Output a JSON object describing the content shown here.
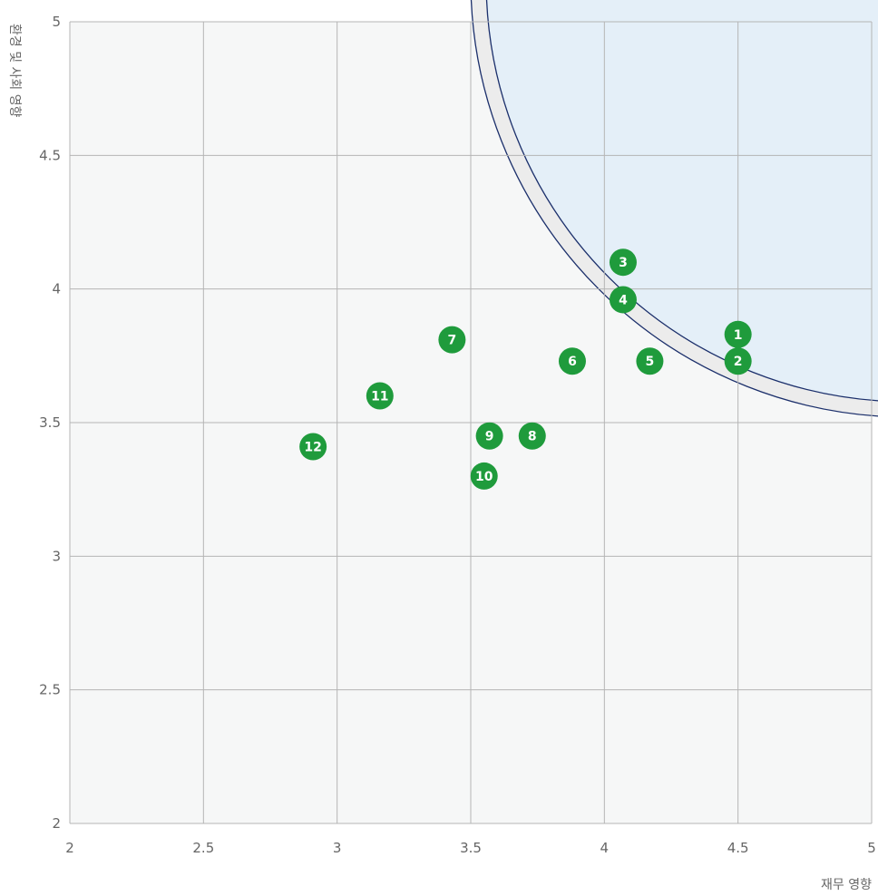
{
  "chart_data": {
    "type": "scatter",
    "title": "",
    "xlabel": "재무 영향",
    "ylabel": "환경 및 사회 영향",
    "xlim": [
      2,
      5
    ],
    "ylim": [
      2,
      5
    ],
    "x_ticks": [
      "2",
      "2.5",
      "3",
      "3.5",
      "4",
      "4.5",
      "5"
    ],
    "y_ticks": [
      "2",
      "2.5",
      "3",
      "3.5",
      "4",
      "4.5",
      "5"
    ],
    "grid": true,
    "highlight_region": {
      "shape": "quarter-circle",
      "center": [
        5,
        5
      ],
      "radius": 1.6
    },
    "points": [
      {
        "label": "1",
        "x": 4.5,
        "y": 3.83
      },
      {
        "label": "2",
        "x": 4.5,
        "y": 3.73
      },
      {
        "label": "3",
        "x": 4.07,
        "y": 4.1
      },
      {
        "label": "4",
        "x": 4.07,
        "y": 3.96
      },
      {
        "label": "5",
        "x": 4.17,
        "y": 3.73
      },
      {
        "label": "6",
        "x": 3.88,
        "y": 3.73
      },
      {
        "label": "7",
        "x": 3.43,
        "y": 3.81
      },
      {
        "label": "8",
        "x": 3.73,
        "y": 3.45
      },
      {
        "label": "9",
        "x": 3.57,
        "y": 3.45
      },
      {
        "label": "10",
        "x": 3.55,
        "y": 3.3
      },
      {
        "label": "11",
        "x": 3.16,
        "y": 3.6
      },
      {
        "label": "12",
        "x": 2.91,
        "y": 3.41
      }
    ],
    "colors": {
      "plot_bg": "#f6f7f7",
      "grid": "#b5b5b5",
      "region_fill": "#e3f0fa",
      "region_stroke": "#1b2f6b",
      "band_fill": "#ececec",
      "point_fill": "#1f9b3c",
      "point_text": "#ffffff"
    }
  }
}
